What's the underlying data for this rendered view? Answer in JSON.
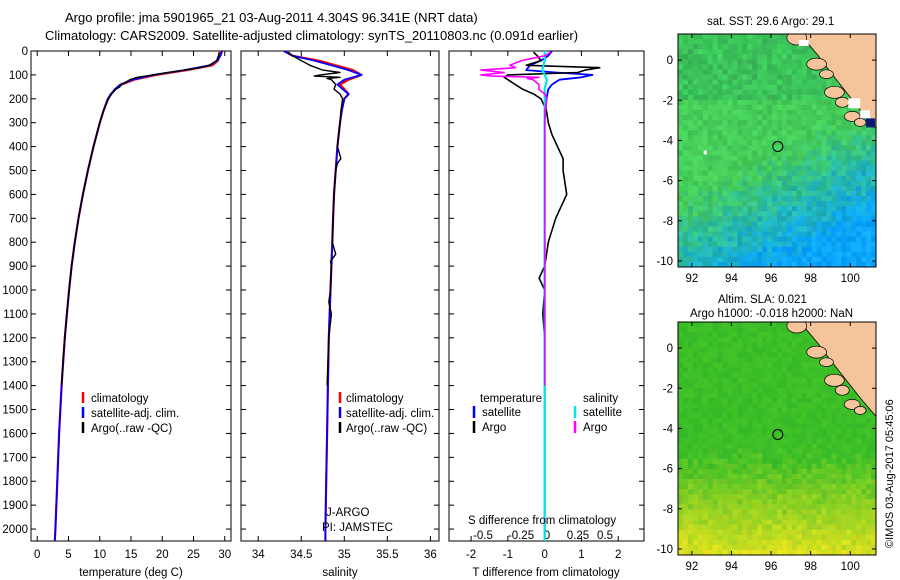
{
  "header": {
    "line1": "Argo profile: jma 5901965_21 03-Aug-2011 4.304S 96.341E (NRT data)",
    "line2": "Climatology: CARS2009. Satellite-adjusted climatology: synTS_20110803.nc (0.091d earlier)"
  },
  "colors": {
    "climatology": "#ff0000",
    "satellite": "#0000ff",
    "argo": "#000000",
    "salinity_satellite": "#00e5ee",
    "salinity_argo": "#ff00ff",
    "land": "#f6c49a"
  },
  "legend": {
    "climatology": "climatology",
    "satellite_clim": "satellite-adj. clim.",
    "argo": "Argo(..raw -QC)",
    "temperature": "temperature",
    "salinity": "salinity",
    "satellite": "satellite",
    "argo_short": "Argo"
  },
  "labels": {
    "jargo": "J-ARGO",
    "pi": "PI: JAMSTEC",
    "s_diff": "S difference from climatology",
    "t_diff": "T difference from climatology",
    "sst_title": "sat. SST: 29.6  Argo: 29.1",
    "sla_title1": "Altim. SLA: 0.021",
    "sla_title2": "Argo h1000: -0.018 h2000: NaN",
    "footer": "©IMOS 03-Aug-2017 05:45:06"
  },
  "chart_data": [
    {
      "type": "line",
      "title": "",
      "xlabel": "temperature (deg C)",
      "ylabel": "",
      "xlim": [
        -1,
        31
      ],
      "ylim": [
        2050,
        0
      ],
      "xticks": [
        0,
        5,
        10,
        15,
        20,
        25,
        30
      ],
      "yticks": [
        0,
        100,
        200,
        300,
        400,
        500,
        600,
        700,
        800,
        900,
        1000,
        1100,
        1200,
        1300,
        1400,
        1500,
        1600,
        1700,
        1800,
        1900,
        2000
      ],
      "series": [
        {
          "name": "climatology",
          "depth": [
            0,
            20,
            40,
            60,
            80,
            100,
            120,
            140,
            160,
            180,
            200,
            250,
            300,
            400,
            500,
            600,
            700,
            800,
            900,
            1000,
            1200,
            1400,
            1600,
            1800,
            2000,
            2050
          ],
          "values": [
            29.4,
            29.2,
            28.9,
            28.0,
            24.0,
            19.0,
            15.5,
            13.5,
            12.5,
            11.8,
            11.3,
            10.6,
            10.0,
            9.0,
            8.1,
            7.3,
            6.6,
            6.0,
            5.5,
            5.1,
            4.4,
            3.9,
            3.5,
            3.2,
            2.9,
            2.8
          ]
        },
        {
          "name": "satellite-adj. clim.",
          "depth": [
            0,
            20,
            40,
            60,
            80,
            100,
            120,
            140,
            160,
            180,
            200,
            250,
            300,
            400,
            500,
            600,
            700,
            800,
            900,
            1000,
            1200,
            1400,
            1600,
            1800,
            2000,
            2050
          ],
          "values": [
            29.6,
            29.3,
            28.8,
            27.6,
            23.5,
            18.6,
            15.2,
            13.3,
            12.4,
            11.8,
            11.3,
            10.6,
            10.0,
            9.0,
            8.1,
            7.3,
            6.6,
            6.0,
            5.5,
            5.1,
            4.4,
            3.9,
            3.5,
            3.2,
            2.9,
            2.8
          ]
        },
        {
          "name": "Argo(..raw -QC)",
          "depth": [
            5,
            20,
            40,
            60,
            70,
            80,
            90,
            100,
            110,
            120,
            130,
            140,
            150,
            160,
            180,
            200,
            250,
            300,
            400,
            500,
            600,
            700,
            800,
            900,
            1000,
            1100,
            1200,
            1300,
            1400
          ],
          "values": [
            29.1,
            29.0,
            28.7,
            27.5,
            26.0,
            23.5,
            21.0,
            18.5,
            16.0,
            14.8,
            14.2,
            13.4,
            13.2,
            12.6,
            11.9,
            11.4,
            10.6,
            10.0,
            9.0,
            8.1,
            7.3,
            6.6,
            6.0,
            5.5,
            5.1,
            4.7,
            4.4,
            4.1,
            3.9
          ]
        }
      ]
    },
    {
      "type": "line",
      "xlabel": "salinity",
      "xlim": [
        33.8,
        36.1
      ],
      "ylim": [
        2050,
        0
      ],
      "xticks": [
        34,
        34.5,
        35,
        35.5,
        36
      ],
      "series": [
        {
          "name": "climatology",
          "depth": [
            0,
            20,
            40,
            60,
            80,
            100,
            120,
            140,
            160,
            180,
            200,
            250,
            300,
            400,
            500,
            600,
            700,
            800,
            900,
            1000,
            1200,
            1400,
            1600,
            1800,
            2000,
            2050
          ],
          "values": [
            34.3,
            34.4,
            34.7,
            34.9,
            35.1,
            35.2,
            35.05,
            34.95,
            35.0,
            35.05,
            35.0,
            34.97,
            34.95,
            34.92,
            34.9,
            34.88,
            34.87,
            34.86,
            34.85,
            34.84,
            34.82,
            34.81,
            34.8,
            34.79,
            34.78,
            34.78
          ]
        },
        {
          "name": "satellite-adj. clim.",
          "depth": [
            0,
            20,
            40,
            60,
            80,
            100,
            120,
            140,
            160,
            180,
            200,
            250,
            300,
            400,
            500,
            600,
            700,
            800,
            900,
            1000,
            1200,
            1400,
            1600,
            1800,
            2000,
            2050
          ],
          "values": [
            34.3,
            34.4,
            34.65,
            34.85,
            35.05,
            35.2,
            35.0,
            34.92,
            34.98,
            35.05,
            35.0,
            34.97,
            34.95,
            34.92,
            34.9,
            34.88,
            34.87,
            34.86,
            34.85,
            34.84,
            34.82,
            34.81,
            34.8,
            34.79,
            34.78,
            34.78
          ]
        },
        {
          "name": "Argo(..raw -QC)",
          "depth": [
            5,
            20,
            40,
            60,
            80,
            90,
            100,
            105,
            110,
            115,
            120,
            140,
            160,
            180,
            200,
            250,
            300,
            400,
            450,
            470,
            500,
            600,
            700,
            800,
            850,
            880,
            900,
            1000,
            1050,
            1100,
            1200,
            1300,
            1400
          ],
          "values": [
            34.35,
            34.4,
            34.5,
            34.6,
            34.75,
            34.95,
            34.72,
            34.65,
            34.95,
            34.8,
            34.85,
            34.9,
            34.88,
            34.95,
            34.98,
            34.96,
            34.95,
            34.92,
            34.96,
            34.92,
            34.9,
            34.88,
            34.87,
            34.86,
            34.9,
            34.84,
            34.85,
            34.84,
            34.82,
            34.85,
            34.82,
            34.81,
            34.8
          ]
        }
      ]
    },
    {
      "type": "line",
      "xlabel": "T difference from climatology",
      "xlim": [
        -2.6,
        2.7
      ],
      "ylim": [
        2050,
        0
      ],
      "xticks": [
        -2,
        -1,
        0,
        1,
        2
      ],
      "top_xlabel": "S difference from climatology",
      "top_xticks": [
        -0.5,
        -0.25,
        0,
        0.25,
        0.5
      ],
      "series": [
        {
          "name": "temperature satellite",
          "depth": [
            0,
            20,
            40,
            60,
            80,
            90,
            100,
            110,
            120,
            140,
            160,
            200,
            300,
            400,
            600,
            800,
            1000,
            1200,
            1500,
            1800,
            2000,
            2050
          ],
          "values": [
            0.2,
            0.1,
            -0.1,
            -0.4,
            -0.5,
            0.3,
            1.3,
            1.0,
            0.4,
            0.2,
            0.1,
            0.05,
            0.0,
            0.0,
            0.0,
            0.0,
            0.0,
            0.0,
            0.0,
            0.0,
            0.0,
            0.0
          ]
        },
        {
          "name": "temperature Argo",
          "depth": [
            5,
            20,
            40,
            60,
            70,
            80,
            90,
            100,
            110,
            120,
            130,
            140,
            160,
            180,
            200,
            250,
            300,
            350,
            400,
            450,
            500,
            550,
            600,
            700,
            800,
            900,
            950,
            1000,
            1100,
            1200,
            1300,
            1400
          ],
          "values": [
            -0.3,
            -0.2,
            -0.1,
            -0.5,
            1.5,
            1.1,
            0.9,
            -1.0,
            -1.1,
            -1.0,
            -0.9,
            -0.8,
            -0.6,
            -0.3,
            -0.1,
            0.05,
            0.1,
            0.2,
            0.35,
            0.5,
            0.5,
            0.55,
            0.6,
            0.3,
            0.1,
            0.0,
            -0.15,
            0.0,
            -0.05,
            0.0,
            0.0,
            0.0
          ]
        },
        {
          "name": "salinity satellite",
          "depth": [
            0,
            20,
            40,
            60,
            80,
            100,
            120,
            140,
            160,
            200,
            300,
            400,
            600,
            800,
            1000,
            1200,
            1500,
            1800,
            2000,
            2050
          ],
          "values": [
            0.0,
            0.0,
            0.0,
            -0.01,
            -0.02,
            0.0,
            0.02,
            0.01,
            0.0,
            0.0,
            0.0,
            0.0,
            0.0,
            0.0,
            0.0,
            0.0,
            0.0,
            0.0,
            0.0,
            0.0
          ]
        },
        {
          "name": "salinity Argo",
          "depth": [
            5,
            20,
            40,
            60,
            70,
            80,
            90,
            100,
            105,
            110,
            115,
            120,
            140,
            160,
            180,
            200,
            250,
            300,
            400,
            500,
            600,
            800,
            1000,
            1200,
            1400
          ],
          "values": [
            0.05,
            0.0,
            -0.2,
            -0.3,
            -0.25,
            -0.55,
            -0.35,
            -0.55,
            -0.45,
            -0.05,
            -0.15,
            -0.1,
            -0.05,
            -0.05,
            0.0,
            0.02,
            0.0,
            0.0,
            0.0,
            0.0,
            0.0,
            0.0,
            0.0,
            0.0,
            0.0
          ]
        }
      ]
    },
    {
      "type": "heatmap",
      "title": "sat. SST: 29.6  Argo: 29.1",
      "xlim": [
        91.3,
        101.3
      ],
      "ylim": [
        -10.3,
        1.3
      ],
      "xticks": [
        92,
        94,
        96,
        98,
        100
      ],
      "yticks": [
        0,
        -2,
        -4,
        -6,
        -8,
        -10
      ],
      "marker": {
        "lon": 96.34,
        "lat": -4.3
      }
    },
    {
      "type": "heatmap",
      "title": "Altim. SLA: 0.021",
      "xlim": [
        91.3,
        101.3
      ],
      "ylim": [
        -10.3,
        1.3
      ],
      "xticks": [
        92,
        94,
        96,
        98,
        100
      ],
      "yticks": [
        0,
        -2,
        -4,
        -6,
        -8,
        -10
      ],
      "marker": {
        "lon": 96.34,
        "lat": -4.3
      }
    }
  ]
}
